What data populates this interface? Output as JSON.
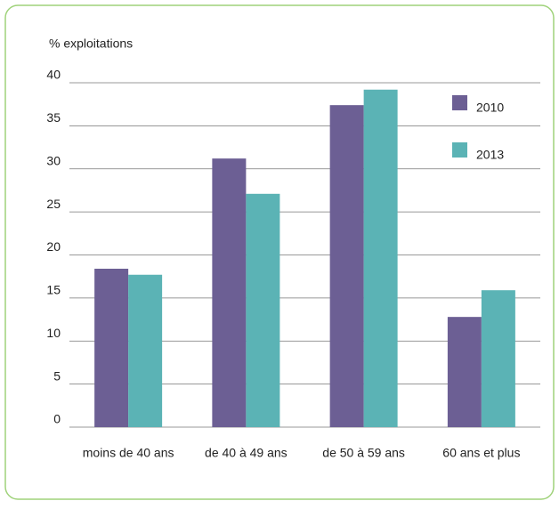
{
  "chart_data": {
    "type": "bar",
    "y_label": "% exploitations",
    "categories": [
      "moins de 40 ans",
      "de 40 à 49 ans",
      "de 50 à 59 ans",
      "60 ans et plus"
    ],
    "series": [
      {
        "name": "2010",
        "color": "#6c5f94",
        "values": [
          18.4,
          31.2,
          37.4,
          12.8
        ]
      },
      {
        "name": "2013",
        "color": "#5bb3b5",
        "values": [
          17.7,
          27.1,
          39.2,
          15.9
        ]
      }
    ],
    "ylim": [
      0,
      40
    ],
    "yticks": [
      0,
      5,
      10,
      15,
      20,
      25,
      30,
      35,
      40
    ],
    "grid": true,
    "legend": "upper right"
  }
}
